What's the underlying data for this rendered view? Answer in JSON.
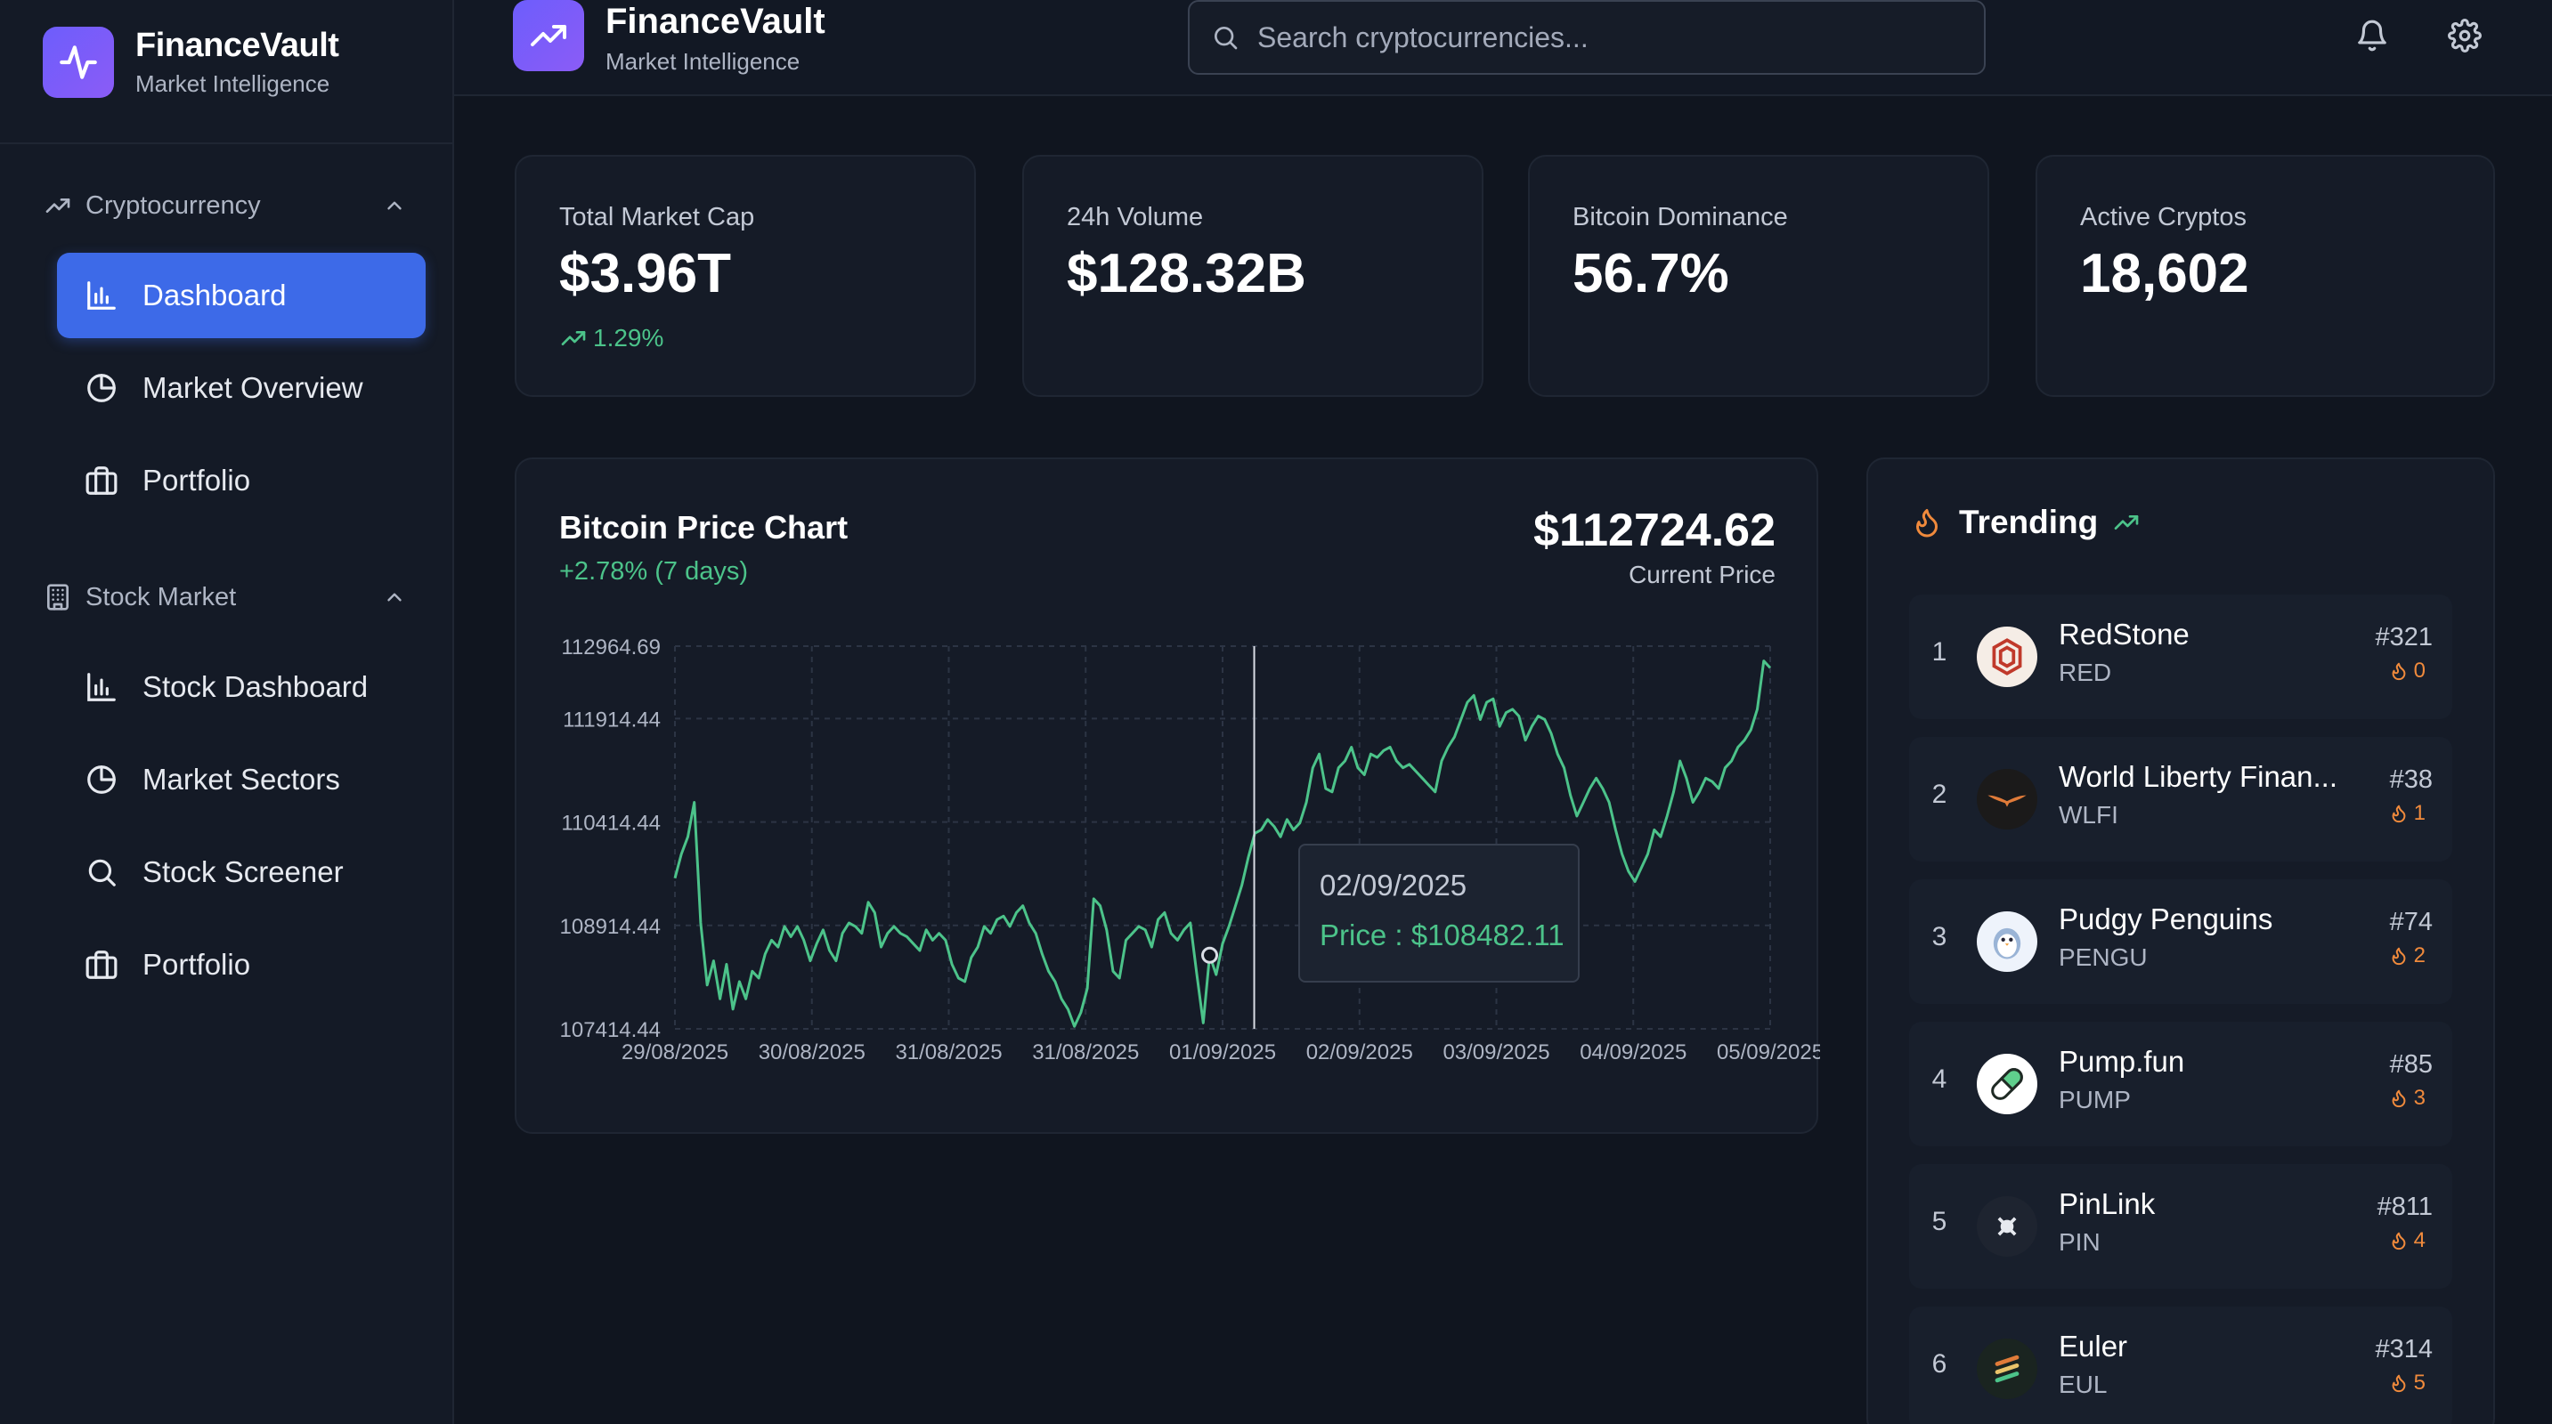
{
  "sidebar": {
    "brand_title": "FinanceVault",
    "brand_subtitle": "Market Intelligence",
    "sections": [
      {
        "title": "Cryptocurrency",
        "items": [
          "Dashboard",
          "Market Overview",
          "Portfolio"
        ]
      },
      {
        "title": "Stock Market",
        "items": [
          "Stock Dashboard",
          "Market Sectors",
          "Stock Screener",
          "Portfolio"
        ]
      }
    ],
    "active_item": "Dashboard"
  },
  "header": {
    "title": "FinanceVault",
    "subtitle": "Market Intelligence",
    "search_placeholder": "Search cryptocurrencies..."
  },
  "stats": [
    {
      "label": "Total Market Cap",
      "value": "$3.96T",
      "change": "1.29%"
    },
    {
      "label": "24h Volume",
      "value": "$128.32B"
    },
    {
      "label": "Bitcoin Dominance",
      "value": "56.7%"
    },
    {
      "label": "Active Cryptos",
      "value": "18,602"
    }
  ],
  "chart": {
    "title": "Bitcoin Price Chart",
    "change": "+2.78% (7 days)",
    "current_price": "$112724.62",
    "current_price_label": "Current Price",
    "tooltip_date": "02/09/2025",
    "tooltip_price": "Price : $108482.11",
    "line_color": "#4cc38a"
  },
  "chart_data": {
    "type": "line",
    "title": "Bitcoin Price Chart",
    "xlabel": "",
    "ylabel": "",
    "x_ticks": [
      "29/08/2025",
      "30/08/2025",
      "31/08/2025",
      "31/08/2025",
      "01/09/2025",
      "02/09/2025",
      "03/09/2025",
      "04/09/2025",
      "05/09/2025"
    ],
    "y_ticks": [
      "112964.69",
      "111914.44",
      "110414.44",
      "108914.44",
      "107414.44"
    ],
    "ylim": [
      107414.44,
      112964.69
    ],
    "grid": true,
    "series": [
      {
        "values": [
          109600,
          109950,
          110200,
          110700,
          108950,
          108050,
          108400,
          107850,
          108350,
          107700,
          108100,
          107850,
          108250,
          108150,
          108500,
          108700,
          108600,
          108900,
          108750,
          108900,
          108700,
          108400,
          108650,
          108850,
          108550,
          108400,
          108800,
          108950,
          108900,
          108800,
          109250,
          109100,
          108600,
          108800,
          108900,
          108800,
          108750,
          108650,
          108550,
          108850,
          108700,
          108800,
          108700,
          108350,
          108150,
          108100,
          108450,
          108600,
          108900,
          108800,
          109000,
          109050,
          108900,
          109100,
          109200,
          108950,
          108800,
          108500,
          108250,
          108100,
          107850,
          107700,
          107450,
          107650,
          108000,
          109300,
          109200,
          108850,
          108250,
          108150,
          108700,
          108800,
          108900,
          108850,
          108600,
          109000,
          109100,
          108800,
          108700,
          108850,
          108950,
          108200,
          107500,
          108482,
          108200,
          108650,
          108900,
          109200,
          109500,
          109900,
          110250,
          110300,
          110450,
          110350,
          110200,
          110450,
          110300,
          110400,
          110700,
          111200,
          111400,
          110900,
          110850,
          111200,
          111300,
          111500,
          111200,
          111100,
          111400,
          111350,
          111450,
          111500,
          111300,
          111200,
          111250,
          111150,
          111050,
          110950,
          110850,
          111300,
          111500,
          111650,
          111900,
          112150,
          112250,
          111900,
          112150,
          112200,
          111800,
          112000,
          112050,
          111950,
          111600,
          111800,
          111950,
          111900,
          111700,
          111400,
          111200,
          110800,
          110500,
          110700,
          110900,
          111050,
          110900,
          110700,
          110300,
          109950,
          109700,
          109550,
          109750,
          109950,
          110300,
          110200,
          110500,
          110850,
          111300,
          111050,
          110700,
          110850,
          111050,
          111000,
          110900,
          111200,
          111300,
          111500,
          111600,
          111750,
          112050,
          112750,
          112650
        ]
      }
    ]
  },
  "trending": {
    "title": "Trending",
    "items": [
      {
        "rank": "1",
        "name": "RedStone",
        "symbol": "RED",
        "market_cap_rank": "#321",
        "score": "0",
        "logo": "redstone-logo"
      },
      {
        "rank": "2",
        "name": "World Liberty Finan...",
        "symbol": "WLFI",
        "market_cap_rank": "#38",
        "score": "1",
        "logo": "wlfi-logo"
      },
      {
        "rank": "3",
        "name": "Pudgy Penguins",
        "symbol": "PENGU",
        "market_cap_rank": "#74",
        "score": "2",
        "logo": "pengu-logo"
      },
      {
        "rank": "4",
        "name": "Pump.fun",
        "symbol": "PUMP",
        "market_cap_rank": "#85",
        "score": "3",
        "logo": "pump-logo"
      },
      {
        "rank": "5",
        "name": "PinLink",
        "symbol": "PIN",
        "market_cap_rank": "#811",
        "score": "4",
        "logo": "pinlink-logo"
      },
      {
        "rank": "6",
        "name": "Euler",
        "symbol": "EUL",
        "market_cap_rank": "#314",
        "score": "5",
        "logo": "euler-logo"
      }
    ]
  }
}
